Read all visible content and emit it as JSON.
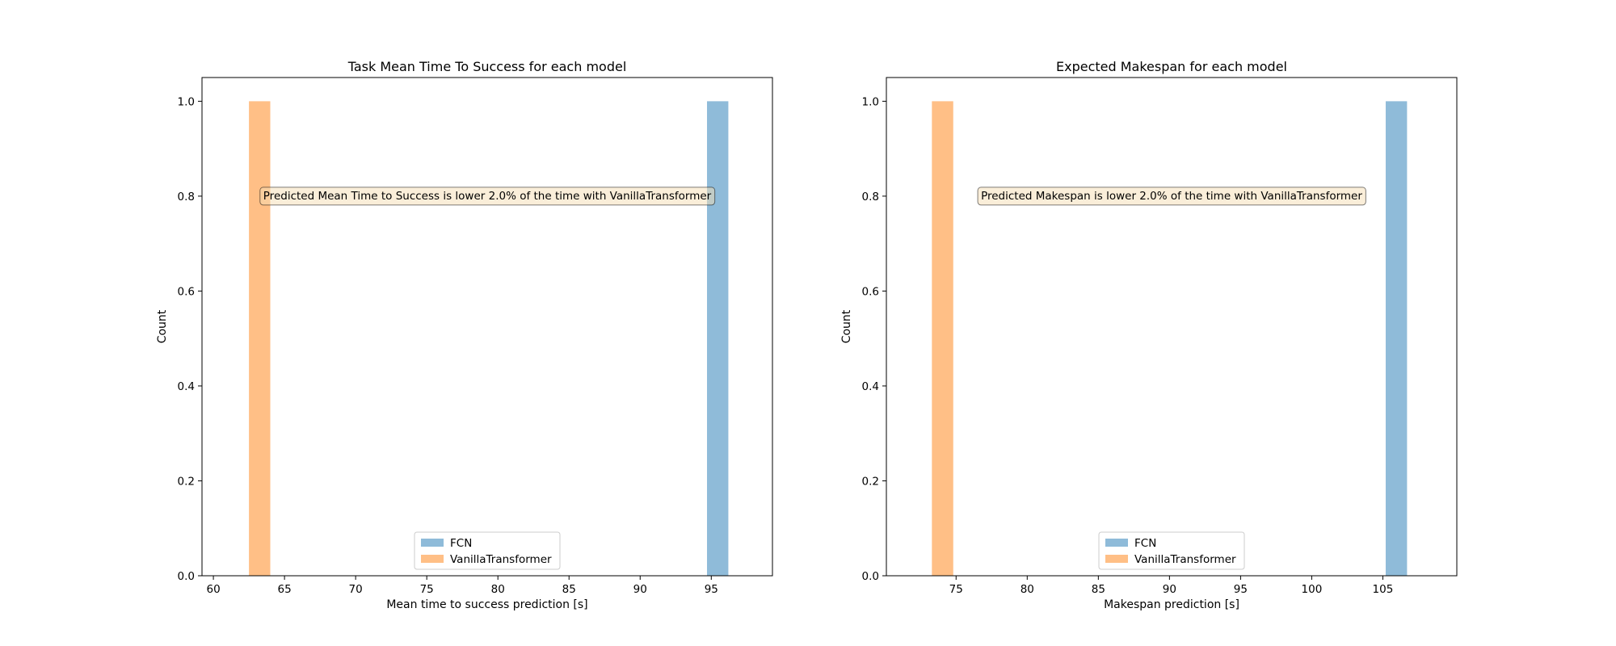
{
  "chart_data": [
    {
      "type": "histogram",
      "title": "Task Mean Time To Success for each model",
      "xlabel": "Mean time to success prediction [s]",
      "ylabel": "Count",
      "xlim": [
        59.2,
        99.3
      ],
      "ylim": [
        0,
        1.05
      ],
      "x_ticks": [
        60,
        65,
        70,
        75,
        80,
        85,
        90,
        95
      ],
      "y_ticks": [
        0.0,
        0.2,
        0.4,
        0.6,
        0.8,
        1.0
      ],
      "x_tick_labels": [
        "60",
        "65",
        "70",
        "75",
        "80",
        "85",
        "90",
        "95"
      ],
      "y_tick_labels": [
        "0.0",
        "0.2",
        "0.4",
        "0.6",
        "0.8",
        "1.0"
      ],
      "legend_placement": "lower center",
      "series": [
        {
          "name": "FCN",
          "color": "#1f77b4",
          "bin_start": 94.7,
          "bin_end": 96.2,
          "count": 1
        },
        {
          "name": "VanillaTransformer",
          "color": "#ff7f0e",
          "bin_start": 62.5,
          "bin_end": 64.0,
          "count": 1
        }
      ],
      "annotation": {
        "text": "Predicted Mean Time to Success is lower 2.0% of the time with VanillaTransformer",
        "y": 0.8
      }
    },
    {
      "type": "histogram",
      "title": "Expected Makespan for each model",
      "xlabel": "Makespan prediction [s]",
      "ylabel": "Count",
      "xlim": [
        70.1,
        110.2
      ],
      "ylim": [
        0,
        1.05
      ],
      "x_ticks": [
        75,
        80,
        85,
        90,
        95,
        100,
        105
      ],
      "y_ticks": [
        0.0,
        0.2,
        0.4,
        0.6,
        0.8,
        1.0
      ],
      "x_tick_labels": [
        "75",
        "80",
        "85",
        "90",
        "95",
        "100",
        "105"
      ],
      "y_tick_labels": [
        "0.0",
        "0.2",
        "0.4",
        "0.6",
        "0.8",
        "1.0"
      ],
      "legend_placement": "lower center",
      "series": [
        {
          "name": "FCN",
          "color": "#1f77b4",
          "bin_start": 105.2,
          "bin_end": 106.7,
          "count": 1
        },
        {
          "name": "VanillaTransformer",
          "color": "#ff7f0e",
          "bin_start": 73.3,
          "bin_end": 74.8,
          "count": 1
        }
      ],
      "annotation": {
        "text": "Predicted Makespan is lower 2.0% of the time with VanillaTransformer",
        "y": 0.8
      }
    }
  ],
  "colors": {
    "annotation_fill": "#f5deb3",
    "series_alpha": 0.5
  }
}
